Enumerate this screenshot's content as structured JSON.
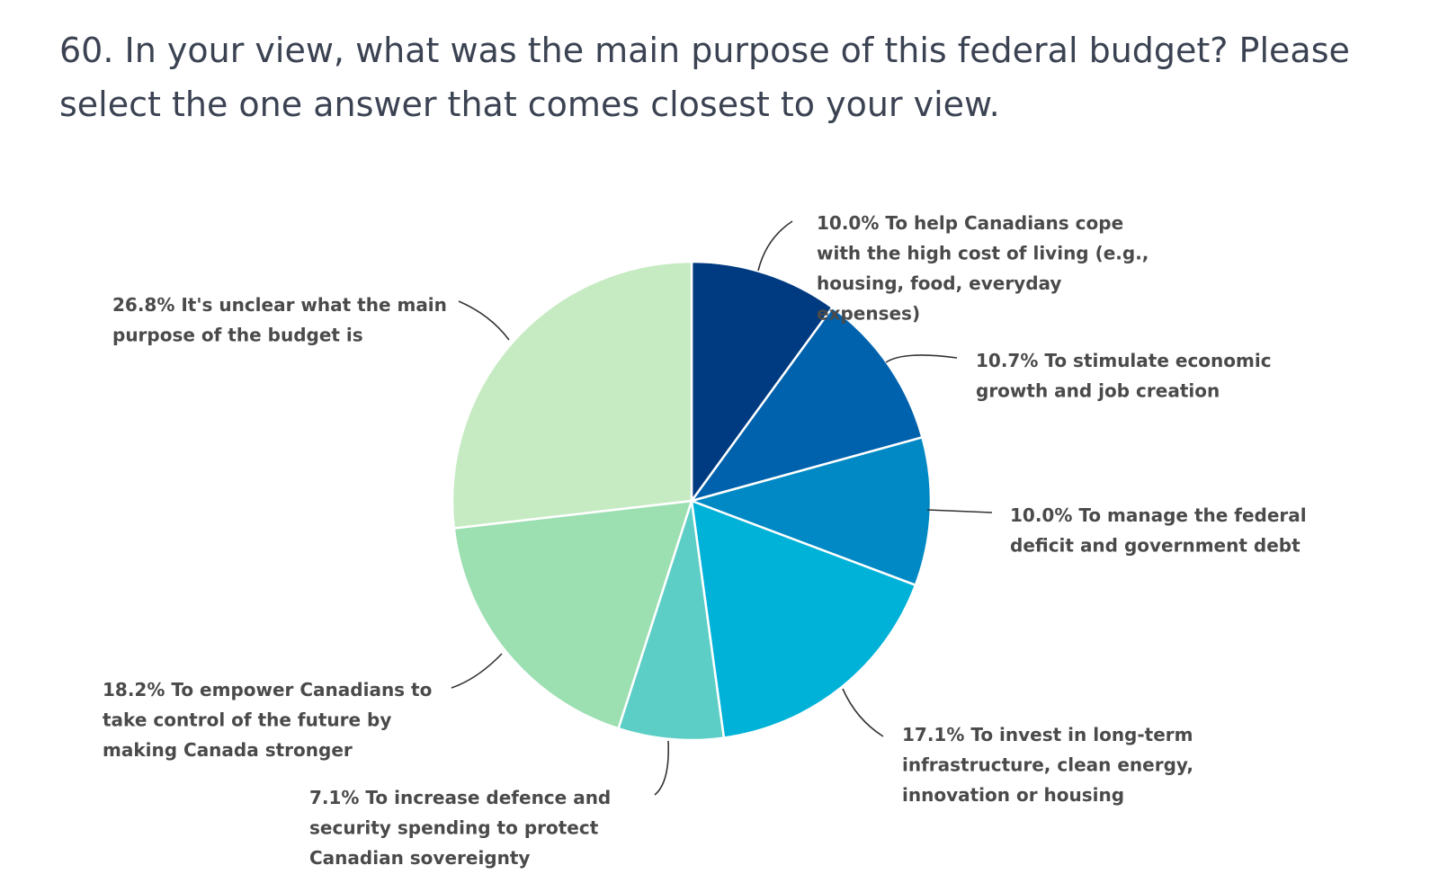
{
  "chart_data": {
    "type": "pie",
    "title": "60. In your view, what was the main purpose of this federal budget? Please select the one answer that comes closest to your view.",
    "slices": [
      {
        "label": "To help Canadians cope with the high cost of living (e.g., housing, food, everyday expenses)",
        "value": 10.0,
        "value_text": "10.0%",
        "label_lines": [
          "10.0% To help Canadians cope",
          "with the high cost of living (e.g.,",
          "housing, food, everyday",
          "expenses)"
        ],
        "color": "#003a80"
      },
      {
        "label": "To stimulate economic growth and job creation",
        "value": 10.7,
        "value_text": "10.7%",
        "label_lines": [
          "10.7% To stimulate economic",
          "growth and job creation"
        ],
        "color": "#0062ad"
      },
      {
        "label": "To manage the federal deficit and government debt",
        "value": 10.0,
        "value_text": "10.0%",
        "label_lines": [
          "10.0% To manage the federal",
          "deficit and government debt"
        ],
        "color": "#0089c4"
      },
      {
        "label": "To invest in long-term infrastructure, clean energy, innovation or housing",
        "value": 17.1,
        "value_text": "17.1%",
        "label_lines": [
          "17.1% To invest in long-term",
          "infrastructure, clean energy,",
          "innovation or housing"
        ],
        "color": "#00b2d8"
      },
      {
        "label": "To increase defence and security spending to protect Canadian sovereignty",
        "value": 7.1,
        "value_text": "7.1%",
        "label_lines": [
          "7.1% To increase defence and",
          "security spending to protect",
          "Canadian sovereignty"
        ],
        "color": "#5dcec6"
      },
      {
        "label": "To empower Canadians to take control of the future by making Canada stronger",
        "value": 18.2,
        "value_text": "18.2%",
        "label_lines": [
          "18.2% To empower Canadians to",
          "take control of the future by",
          "making Canada stronger"
        ],
        "color": "#9cdfb1"
      },
      {
        "label": "It's unclear what the main purpose of the budget is",
        "value": 26.8,
        "value_text": "26.8%",
        "label_lines": [
          "26.8% It's unclear what the main",
          "purpose of the budget is"
        ],
        "color": "#c6ebc2"
      }
    ]
  }
}
